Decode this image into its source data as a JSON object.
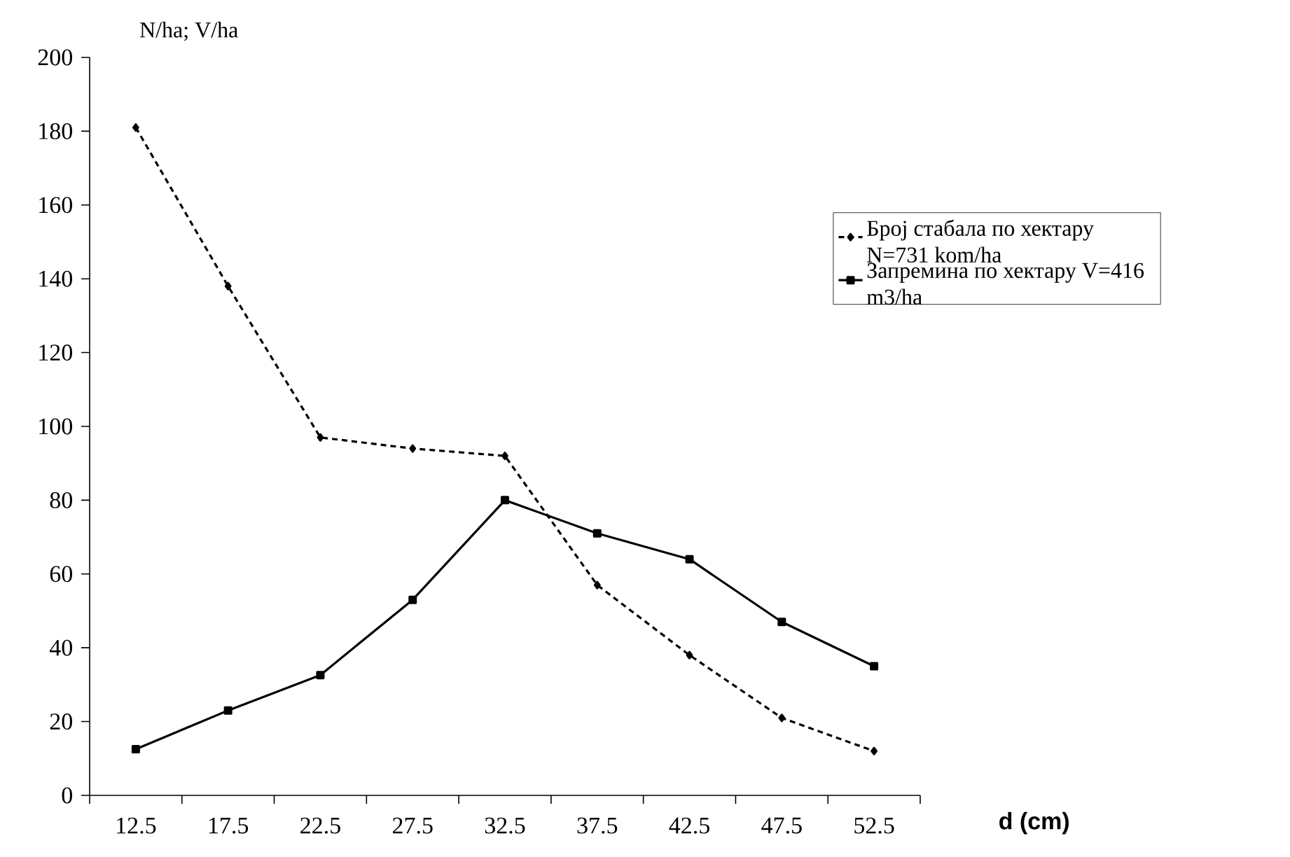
{
  "chart_data": {
    "type": "line",
    "xlabel": "d (cm)",
    "ylabel": "N/ha; V/ha",
    "categories": [
      "12.5",
      "17.5",
      "22.5",
      "27.5",
      "32.5",
      "37.5",
      "42.5",
      "47.5",
      "52.5"
    ],
    "series": [
      {
        "name": "Број стабала по хектару N=731 kom/ha",
        "color": "#000000",
        "line_style": "dashed",
        "marker": "diamond",
        "values": [
          181,
          138,
          97,
          94,
          92,
          57,
          38,
          21,
          12
        ]
      },
      {
        "name": "Запремина по хектару V=416 m3/ha",
        "color": "#000000",
        "line_style": "solid",
        "marker": "square",
        "values": [
          12.5,
          23,
          32.6,
          53,
          80,
          71,
          64,
          47,
          35
        ]
      }
    ],
    "ylim": [
      0,
      200
    ],
    "yticks": [
      0,
      20,
      40,
      60,
      80,
      100,
      120,
      140,
      160,
      180,
      200
    ],
    "grid": false,
    "legend": "right"
  }
}
